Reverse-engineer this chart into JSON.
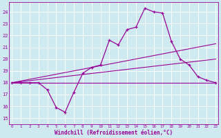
{
  "xlabel": "Windchill (Refroidissement éolien,°C)",
  "bg_color": "#ceeaf0",
  "grid_color": "#ffffff",
  "line_color": "#990099",
  "x_ticks": [
    0,
    1,
    2,
    3,
    4,
    5,
    6,
    7,
    8,
    9,
    10,
    11,
    12,
    13,
    14,
    15,
    16,
    17,
    18,
    19,
    20,
    21,
    22,
    23
  ],
  "y_ticks": [
    15,
    16,
    17,
    18,
    19,
    20,
    21,
    22,
    23,
    24
  ],
  "xlim": [
    -0.3,
    23.3
  ],
  "ylim": [
    14.5,
    24.8
  ],
  "main_line": {
    "x": [
      0,
      1,
      2,
      3,
      4,
      5,
      6,
      7,
      8,
      9,
      10,
      11,
      12,
      13,
      14,
      15,
      16,
      17,
      18,
      19,
      20,
      21,
      22,
      23
    ],
    "y": [
      18.0,
      18.0,
      18.0,
      18.0,
      17.4,
      15.9,
      15.5,
      17.2,
      18.8,
      19.3,
      19.5,
      21.6,
      21.2,
      22.5,
      22.7,
      24.3,
      24.0,
      23.9,
      21.5,
      20.0,
      19.5,
      18.5,
      18.2,
      18.0
    ]
  },
  "ref_lines": [
    {
      "x": [
        0,
        23
      ],
      "y": [
        18.0,
        21.3
      ]
    },
    {
      "x": [
        0,
        23
      ],
      "y": [
        18.0,
        20.0
      ]
    },
    {
      "x": [
        0,
        23
      ],
      "y": [
        18.0,
        18.0
      ]
    }
  ]
}
